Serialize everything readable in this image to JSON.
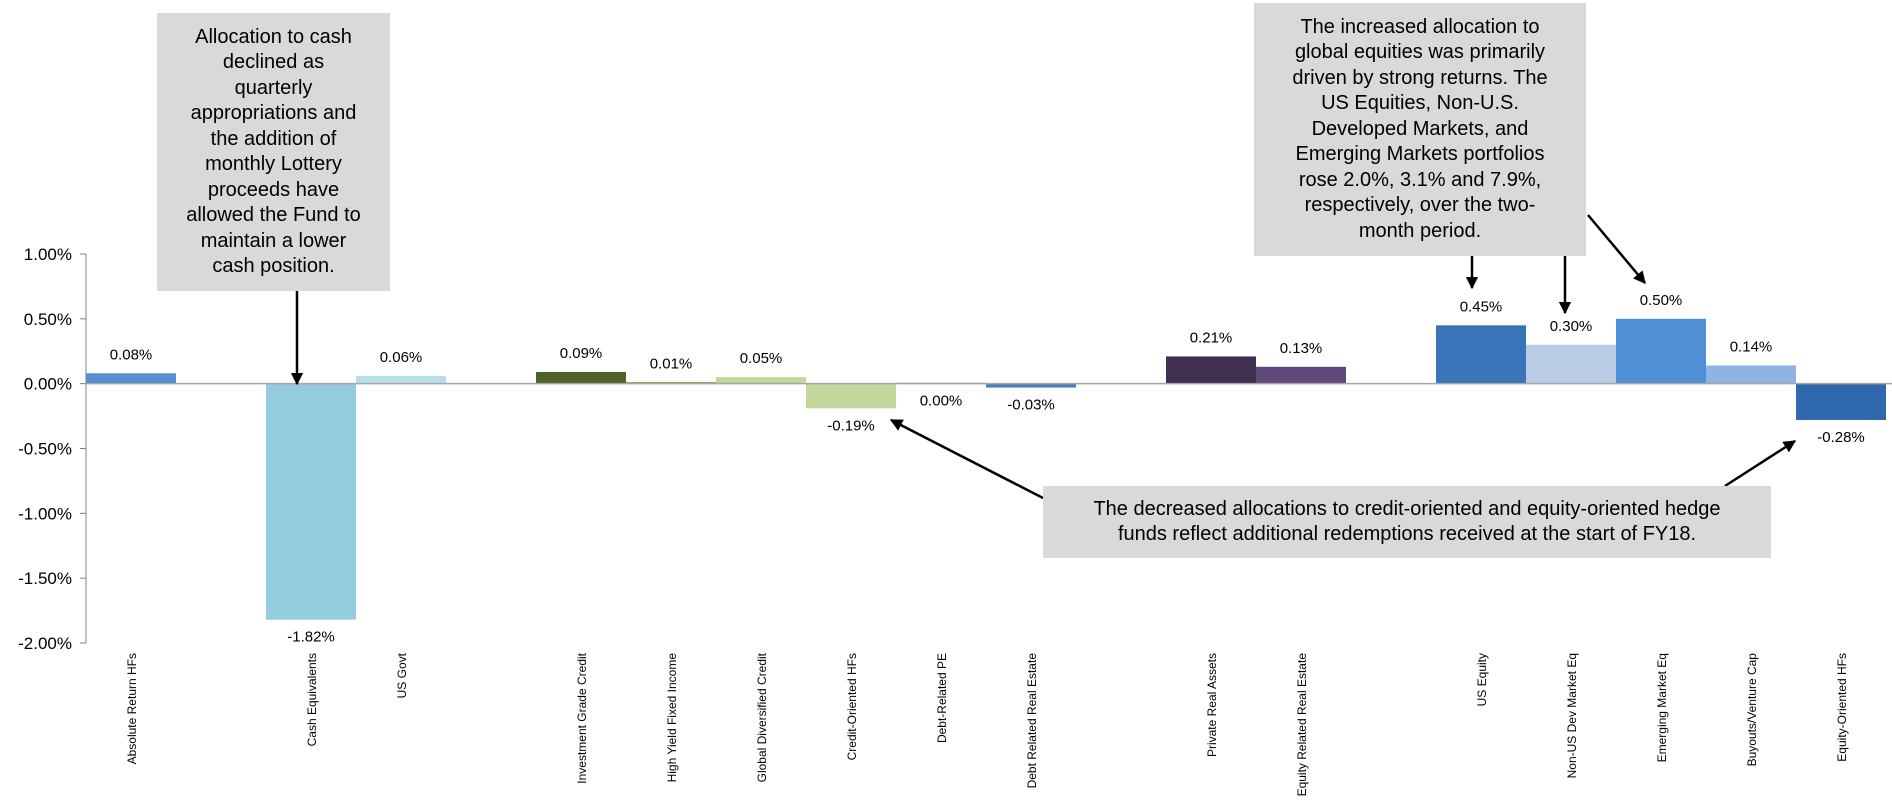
{
  "chart_data": {
    "type": "bar",
    "title": "",
    "xlabel": "",
    "ylabel": "",
    "ylim": [
      -2.0,
      1.0
    ],
    "yticks": [
      "1.00%",
      "0.50%",
      "0.00%",
      "-0.50%",
      "-1.00%",
      "-1.50%",
      "-2.00%"
    ],
    "ytick_values": [
      1.0,
      0.5,
      0.0,
      -0.5,
      -1.0,
      -1.5,
      -2.0
    ],
    "grid": false,
    "legend": "none",
    "bars": [
      {
        "category": "Absolute Return HFs",
        "value": 0.08,
        "label": "0.08%",
        "color": "#558ed5"
      },
      {
        "category": "Cash Equivalents",
        "value": -1.82,
        "label": "-1.82%",
        "color": "#93cddd"
      },
      {
        "category": "US Govt",
        "value": 0.06,
        "label": "0.06%",
        "color": "#b7dee8"
      },
      {
        "category": "Investment Grade Credit",
        "value": 0.09,
        "label": "0.09%",
        "color": "#4f6228"
      },
      {
        "category": "High Yield Fixed Income",
        "value": 0.01,
        "label": "0.01%",
        "color": "#77933c"
      },
      {
        "category": "Global Diversified Credit",
        "value": 0.05,
        "label": "0.05%",
        "color": "#c3d69b"
      },
      {
        "category": "Credit-Oriented HFs",
        "value": -0.19,
        "label": "-0.19%",
        "color": "#c4d79b"
      },
      {
        "category": "Debt-Related PE",
        "value": 0.0,
        "label": "0.00%",
        "color": "#d7e4bd"
      },
      {
        "category": "Debt Related Real Estate",
        "value": -0.03,
        "label": "-0.03%",
        "color": "#4a7ebb"
      },
      {
        "category": "Private Real Assets",
        "value": 0.21,
        "label": "0.21%",
        "color": "#403152"
      },
      {
        "category": "Equity Related Real Estate",
        "value": 0.13,
        "label": "0.13%",
        "color": "#604a7b"
      },
      {
        "category": "US  Equity",
        "value": 0.45,
        "label": "0.45%",
        "color": "#3a74b8"
      },
      {
        "category": "Non-US Dev Market Eq",
        "value": 0.3,
        "label": "0.30%",
        "color": "#b9cde5"
      },
      {
        "category": "Emerging Market Eq",
        "value": 0.5,
        "label": "0.50%",
        "color": "#4f8fd6"
      },
      {
        "category": "Buyouts/Venture Cap",
        "value": 0.14,
        "label": "0.14%",
        "color": "#8db4e2"
      },
      {
        "category": "Equity-Oriented HFs",
        "value": -0.28,
        "label": "-0.28%",
        "color": "#2f68ad"
      }
    ],
    "annotations": [
      {
        "id": "cash",
        "lines": [
          "Allocation to cash",
          "declined as",
          "quarterly",
          "appropriations and",
          "the addition of",
          "monthly Lottery",
          "proceeds have",
          "allowed the Fund to",
          "maintain a lower",
          "cash position."
        ]
      },
      {
        "id": "equities",
        "lines": [
          "The increased allocation to",
          "global equities was primarily",
          "driven by strong returns.  The",
          "US Equities, Non-U.S.",
          "Developed Markets, and",
          "Emerging Markets portfolios",
          "rose 2.0%, 3.1% and 7.9%,",
          "respectively, over the two-",
          "month period."
        ]
      },
      {
        "id": "hedge",
        "lines": [
          "The decreased allocations to credit-oriented and equity-oriented hedge",
          "funds reflect additional redemptions received at the start of FY18."
        ]
      }
    ]
  }
}
